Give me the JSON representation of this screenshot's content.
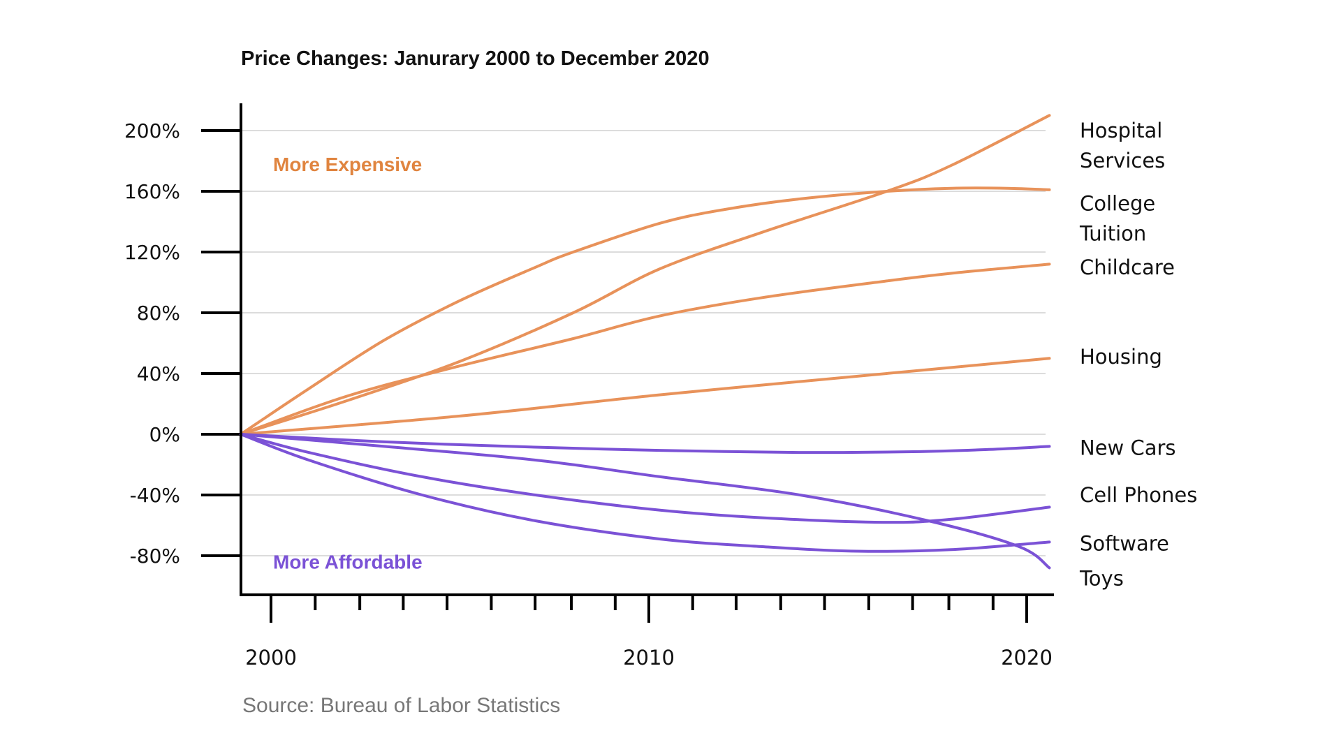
{
  "chart_data": {
    "type": "line",
    "title": "Price Changes: Janurary 2000 to December 2020",
    "xlabel": "",
    "ylabel": "",
    "xlim": [
      1999.2,
      2020.7
    ],
    "ylim": [
      -100,
      210
    ],
    "grid": true,
    "x_major_ticks": [
      {
        "value": 2000,
        "label": "2000"
      },
      {
        "value": 2010,
        "label": "2010"
      },
      {
        "value": 2020,
        "label": "2020"
      }
    ],
    "x_minor_ticks": [
      2001.17,
      2002.35,
      2003.5,
      2004.66,
      2005.83,
      2006.99,
      2007.95,
      2009.11,
      2011.16,
      2012.31,
      2013.49,
      2014.65,
      2015.82,
      2016.98,
      2017.94,
      2019.11
    ],
    "y_ticks": [
      {
        "value": 200,
        "label": "200%"
      },
      {
        "value": 160,
        "label": "160%"
      },
      {
        "value": 120,
        "label": "120%"
      },
      {
        "value": 80,
        "label": "80%"
      },
      {
        "value": 40,
        "label": "40%"
      },
      {
        "value": 0,
        "label": "0%"
      },
      {
        "value": -40,
        "label": "-40%"
      },
      {
        "value": -80,
        "label": "-80%"
      }
    ],
    "annotations": [
      {
        "text": "More Expensive",
        "color": "#e0843f",
        "x": 2000,
        "y": 178
      },
      {
        "text": "More Affordable",
        "color": "#7b52d6",
        "x": 2000,
        "y": -84
      }
    ],
    "source": "Source:  Bureau of Labor Statistics",
    "series": [
      {
        "name": "Hospital Services",
        "label_lines": [
          "Hospital",
          "Services"
        ],
        "color": "#e8925a",
        "label_y": 200,
        "points": [
          [
            1999.2,
            0
          ],
          [
            2002,
            22
          ],
          [
            2005,
            48
          ],
          [
            2008,
            80
          ],
          [
            2010.3,
            109
          ],
          [
            2013,
            133
          ],
          [
            2016.3,
            160
          ],
          [
            2018,
            177
          ],
          [
            2020.6,
            210
          ]
        ]
      },
      {
        "name": "College Tuition",
        "label_lines": [
          "College",
          "Tuition"
        ],
        "color": "#e8925a",
        "label_y": 152,
        "points": [
          [
            1999.2,
            0
          ],
          [
            2001,
            30
          ],
          [
            2003,
            62
          ],
          [
            2005,
            88
          ],
          [
            2007,
            110
          ],
          [
            2008,
            120
          ],
          [
            2010.3,
            139
          ],
          [
            2012,
            148
          ],
          [
            2014,
            155
          ],
          [
            2016.3,
            160
          ],
          [
            2018,
            162
          ],
          [
            2019.5,
            162
          ],
          [
            2020.6,
            161
          ]
        ]
      },
      {
        "name": "Childcare",
        "label_lines": [
          "Childcare"
        ],
        "color": "#e8925a",
        "label_y": 110,
        "points": [
          [
            1999.2,
            0
          ],
          [
            2002,
            25
          ],
          [
            2005,
            45
          ],
          [
            2008,
            63
          ],
          [
            2010.3,
            78
          ],
          [
            2013,
            90
          ],
          [
            2016,
            100
          ],
          [
            2018,
            106
          ],
          [
            2020.6,
            112
          ]
        ]
      },
      {
        "name": "Housing",
        "label_lines": [
          "Housing"
        ],
        "color": "#e8925a",
        "label_y": 51,
        "points": [
          [
            1999.2,
            0
          ],
          [
            2005,
            12
          ],
          [
            2010.3,
            26
          ],
          [
            2015,
            37
          ],
          [
            2020.6,
            50
          ]
        ]
      },
      {
        "name": "New Cars",
        "label_lines": [
          "New Cars"
        ],
        "color": "#7b52d6",
        "label_y": -9,
        "points": [
          [
            1999.2,
            0
          ],
          [
            2003,
            -5
          ],
          [
            2007,
            -8.5
          ],
          [
            2010.3,
            -10.6
          ],
          [
            2014,
            -12
          ],
          [
            2017,
            -11.5
          ],
          [
            2019,
            -10
          ],
          [
            2020.6,
            -8
          ]
        ]
      },
      {
        "name": "Cell Phones",
        "label_lines": [
          "Cell Phones"
        ],
        "color": "#7b52d6",
        "label_y": -40,
        "points": [
          [
            1999.2,
            0
          ],
          [
            2001,
            -12
          ],
          [
            2004,
            -28
          ],
          [
            2007,
            -40
          ],
          [
            2010.3,
            -50
          ],
          [
            2013,
            -55
          ],
          [
            2016.2,
            -58
          ],
          [
            2018,
            -56
          ],
          [
            2020.6,
            -48
          ]
        ]
      },
      {
        "name": "Software",
        "label_lines": [
          "Software"
        ],
        "color": "#7b52d6",
        "label_y": -72,
        "points": [
          [
            1999.2,
            0
          ],
          [
            2001,
            -17
          ],
          [
            2004,
            -40
          ],
          [
            2007,
            -57
          ],
          [
            2010.3,
            -69
          ],
          [
            2013,
            -74
          ],
          [
            2015.5,
            -77
          ],
          [
            2018,
            -76
          ],
          [
            2020.6,
            -71
          ]
        ]
      },
      {
        "name": "Toys",
        "label_lines": [
          "Toys"
        ],
        "color": "#7b52d6",
        "label_y": -95,
        "points": [
          [
            1999.2,
            0
          ],
          [
            2003,
            -8
          ],
          [
            2007,
            -17
          ],
          [
            2010.3,
            -28
          ],
          [
            2014,
            -40
          ],
          [
            2017.4,
            -57
          ],
          [
            2019.8,
            -74
          ],
          [
            2020.6,
            -88
          ]
        ]
      }
    ]
  }
}
